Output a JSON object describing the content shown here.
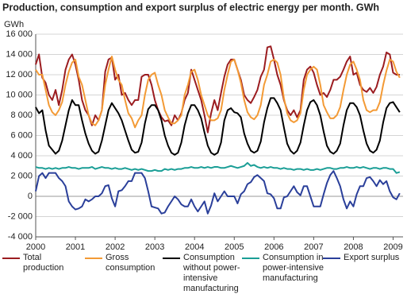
{
  "chart_data": {
    "type": "line",
    "title": "Production, consumption and export surplus of electric energy per month. GWh",
    "y_label": "GWh",
    "xlim": [
      2000,
      2009.25
    ],
    "xticks": [
      2000,
      2001,
      2002,
      2003,
      2004,
      2005,
      2006,
      2007,
      2008,
      2009
    ],
    "ylim": [
      -4000,
      16000
    ],
    "yticks": [
      {
        "value": -4000,
        "label": "-4 000"
      },
      {
        "value": -2000,
        "label": "-2 000"
      },
      0,
      {
        "value": 2000,
        "label": "2 000"
      },
      {
        "value": 4000,
        "label": "4 000"
      },
      {
        "value": 6000,
        "label": "6 000"
      },
      {
        "value": 8000,
        "label": "8 000"
      },
      {
        "value": 10000,
        "label": "10 000"
      },
      {
        "value": 12000,
        "label": "12 000"
      },
      {
        "value": 14000,
        "label": "14 000"
      },
      {
        "value": 16000,
        "label": "16 000"
      }
    ],
    "grid": true,
    "x": [
      2000,
      2000.083,
      2000.167,
      2000.25,
      2000.333,
      2000.417,
      2000.5,
      2000.583,
      2000.667,
      2000.75,
      2000.833,
      2000.917,
      2001,
      2001.083,
      2001.167,
      2001.25,
      2001.333,
      2001.417,
      2001.5,
      2001.583,
      2001.667,
      2001.75,
      2001.833,
      2001.917,
      2002,
      2002.083,
      2002.167,
      2002.25,
      2002.333,
      2002.417,
      2002.5,
      2002.583,
      2002.667,
      2002.75,
      2002.833,
      2002.917,
      2003,
      2003.083,
      2003.167,
      2003.25,
      2003.333,
      2003.417,
      2003.5,
      2003.583,
      2003.667,
      2003.75,
      2003.833,
      2003.917,
      2004,
      2004.083,
      2004.167,
      2004.25,
      2004.333,
      2004.417,
      2004.5,
      2004.583,
      2004.667,
      2004.75,
      2004.833,
      2004.917,
      2005,
      2005.083,
      2005.167,
      2005.25,
      2005.333,
      2005.417,
      2005.5,
      2005.583,
      2005.667,
      2005.75,
      2005.833,
      2005.917,
      2006,
      2006.083,
      2006.167,
      2006.25,
      2006.333,
      2006.417,
      2006.5,
      2006.583,
      2006.667,
      2006.75,
      2006.833,
      2006.917,
      2007,
      2007.083,
      2007.167,
      2007.25,
      2007.333,
      2007.417,
      2007.5,
      2007.583,
      2007.667,
      2007.75,
      2007.833,
      2007.917,
      2008,
      2008.083,
      2008.167,
      2008.25,
      2008.333,
      2008.417,
      2008.5,
      2008.583,
      2008.667,
      2008.75,
      2008.833,
      2008.917,
      2009,
      2009.083,
      2009.167
    ],
    "series": [
      {
        "name": "Total production",
        "color": "#9b1c20",
        "values": [
          13000,
          14000,
          11700,
          11200,
          10000,
          9500,
          10500,
          9000,
          10500,
          12500,
          13500,
          14000,
          13000,
          11500,
          9500,
          8500,
          8000,
          7000,
          8000,
          7500,
          8500,
          12300,
          13500,
          13700,
          11500,
          12000,
          10000,
          10200,
          9500,
          9000,
          9500,
          9500,
          11800,
          12000,
          12000,
          11000,
          9500,
          8500,
          7800,
          7400,
          7500,
          7000,
          8000,
          7500,
          8200,
          9500,
          10200,
          12500,
          11500,
          10500,
          9500,
          8000,
          6300,
          8200,
          9500,
          8500,
          10200,
          11800,
          13000,
          13500,
          13500,
          12500,
          11500,
          10000,
          9500,
          9200,
          9800,
          10500,
          11800,
          12500,
          14700,
          14800,
          13500,
          12000,
          11000,
          9500,
          8500,
          8000,
          8500,
          7800,
          8500,
          11500,
          12500,
          12800,
          12200,
          11000,
          10000,
          10200,
          9800,
          10500,
          11500,
          11500,
          11800,
          12500,
          13300,
          13800,
          12000,
          12200,
          11000,
          10500,
          10300,
          10700,
          10200,
          10800,
          12000,
          12800,
          14200,
          14000,
          12200,
          12000,
          12000
        ]
      },
      {
        "name": "Gross consumption",
        "color": "#f39a35",
        "values": [
          12500,
          12000,
          12000,
          10500,
          9000,
          8300,
          8000,
          8500,
          9300,
          11000,
          12300,
          13200,
          13500,
          11800,
          11000,
          9500,
          8000,
          7200,
          7000,
          7500,
          8500,
          11000,
          12500,
          13800,
          12500,
          11500,
          11000,
          9500,
          8200,
          7700,
          6800,
          7500,
          8000,
          10000,
          11500,
          12000,
          12200,
          11000,
          10000,
          8500,
          7800,
          7200,
          7200,
          7500,
          8000,
          10000,
          11000,
          12300,
          12500,
          11500,
          10000,
          9000,
          8000,
          7500,
          7500,
          7700,
          8500,
          10500,
          12000,
          13300,
          13500,
          12500,
          11200,
          9500,
          8300,
          7800,
          7600,
          8000,
          9000,
          11000,
          12000,
          13300,
          13500,
          13200,
          12000,
          9700,
          8200,
          7500,
          7300,
          7500,
          8200,
          10500,
          12000,
          12500,
          12800,
          12500,
          11000,
          9000,
          8300,
          7700,
          7700,
          8000,
          8800,
          10500,
          12000,
          13000,
          13300,
          12500,
          11500,
          9500,
          8500,
          8300,
          8500,
          8500,
          9300,
          11000,
          12400,
          13500,
          13300,
          12300,
          11700
        ]
      },
      {
        "name": "Consumption without power-intensive manufacturing",
        "color": "#000000",
        "values": [
          8800,
          8200,
          8500,
          6500,
          5000,
          4600,
          4200,
          4500,
          5500,
          7000,
          8500,
          9500,
          9000,
          9000,
          7500,
          6200,
          5200,
          4500,
          4200,
          4400,
          5500,
          7000,
          8500,
          9200,
          8700,
          8200,
          7500,
          6500,
          5500,
          4600,
          4300,
          4400,
          5300,
          7200,
          8600,
          9000,
          9000,
          8500,
          7500,
          6000,
          5000,
          4300,
          4100,
          4300,
          5300,
          7000,
          8200,
          9000,
          9000,
          8500,
          7700,
          6300,
          5000,
          4300,
          4100,
          4300,
          5300,
          7500,
          8500,
          8700,
          8300,
          8200,
          7800,
          6200,
          5200,
          4500,
          4300,
          4500,
          5400,
          7300,
          8700,
          9700,
          9700,
          9200,
          8500,
          6800,
          5200,
          4500,
          4200,
          4500,
          5300,
          7000,
          8500,
          9300,
          9500,
          9000,
          8000,
          6400,
          5000,
          4400,
          4200,
          4500,
          5200,
          7000,
          8500,
          9200,
          9200,
          8800,
          8000,
          6500,
          5200,
          4500,
          4300,
          4600,
          5500,
          7300,
          8700,
          9200,
          9300,
          8800,
          8300
        ]
      },
      {
        "name": "Consumption in power-intensive manufacturing",
        "color": "#1a9e96",
        "values": [
          2900,
          2800,
          2800,
          2700,
          2800,
          2700,
          2800,
          2700,
          2800,
          2800,
          2900,
          2800,
          2800,
          2700,
          2800,
          2800,
          2800,
          2900,
          2700,
          2800,
          2900,
          2800,
          2800,
          2700,
          2800,
          2700,
          2700,
          2800,
          2700,
          2600,
          2700,
          2600,
          2700,
          2600,
          2500,
          2500,
          2600,
          2500,
          2500,
          2700,
          2600,
          2700,
          2600,
          2700,
          2700,
          2800,
          2800,
          2900,
          2800,
          2800,
          2900,
          2800,
          2900,
          2800,
          2900,
          2900,
          2800,
          2800,
          2900,
          3000,
          2900,
          2800,
          2900,
          3000,
          3300,
          3000,
          3100,
          2900,
          2800,
          2900,
          2800,
          2900,
          2800,
          2800,
          2700,
          2800,
          2700,
          2700,
          2600,
          2700,
          2700,
          2600,
          2700,
          2600,
          2600,
          2700,
          2600,
          2700,
          2800,
          2800,
          2700,
          2700,
          2800,
          2800,
          2900,
          2800,
          2800,
          2900,
          2800,
          2900,
          2800,
          2700,
          2800,
          2800,
          2700,
          2800,
          2800,
          2700,
          2700,
          2300,
          2400
        ]
      },
      {
        "name": "Export surplus",
        "color": "#2a3f9a",
        "values": [
          500,
          2000,
          2300,
          1800,
          2300,
          2300,
          2300,
          1800,
          1500,
          1000,
          -500,
          -1000,
          -1300,
          -1200,
          -1000,
          -300,
          -500,
          -300,
          0,
          0,
          300,
          1000,
          1100,
          -200,
          -1000,
          500,
          600,
          1000,
          1500,
          1500,
          2300,
          2300,
          2300,
          1800,
          500,
          -1000,
          -1100,
          -1200,
          -1700,
          -1600,
          -1000,
          -500,
          0,
          -300,
          -800,
          -1000,
          -1000,
          -300,
          -1000,
          -1500,
          -1000,
          -500,
          -1700,
          -900,
          300,
          -500,
          0,
          500,
          0,
          0,
          0,
          -700,
          200,
          500,
          1200,
          1400,
          1900,
          2100,
          1800,
          1500,
          300,
          200,
          -200,
          -1200,
          -1200,
          -100,
          0,
          500,
          1000,
          400,
          100,
          1000,
          1000,
          0,
          -1000,
          -1000,
          -1000,
          200,
          1300,
          2100,
          2500,
          1800,
          1000,
          -300,
          -1200,
          -500,
          -1000,
          200,
          1000,
          1000,
          1800,
          1900,
          1500,
          1000,
          1600,
          1200,
          1500,
          500,
          -100,
          -300,
          300
        ]
      }
    ]
  }
}
